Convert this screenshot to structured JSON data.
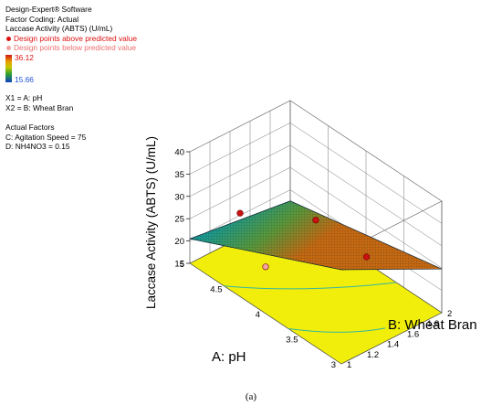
{
  "legend": {
    "software": "Design-Expert® Software",
    "coding": "Factor Coding: Actual",
    "response": "Laccase Activity (ABTS) (U/mL)",
    "above": "Design points above predicted value",
    "below": "Design points below predicted value",
    "max": "36.12",
    "min": "15.66",
    "x1": "X1 = A: pH",
    "x2": "X2 = B: Wheat Bran",
    "actual_title": "Actual Factors",
    "factor_c": "C: Agitation Speed = 75",
    "factor_d": "D: NH4NO3 = 0.15"
  },
  "caption": "(a)",
  "colors": {
    "above": "#cc1111",
    "below": "#f4a2a2",
    "floor": "#f0ee0a",
    "surface_low": "#1e5fae",
    "surface_high": "#c96a10"
  },
  "chart_data": {
    "type": "surface3d",
    "xlabel": "A: pH",
    "ylabel": "B: Wheat Bran",
    "zlabel": "Laccase Activity (ABTS) (U/mL)",
    "xlim": [
      3,
      5
    ],
    "ylim": [
      1,
      2
    ],
    "zlim": [
      15,
      40
    ],
    "x_ticks": [
      "3",
      "3.5",
      "4",
      "4.5",
      "5"
    ],
    "y_ticks": [
      "1",
      "1.2",
      "1.4",
      "1.6",
      "1.8",
      "2"
    ],
    "z_ticks": [
      "15",
      "20",
      "25",
      "30",
      "35",
      "40"
    ],
    "surface_corners": [
      {
        "x": 5,
        "y": 1,
        "z": 20.5
      },
      {
        "x": 5,
        "y": 2,
        "z": 17.5
      },
      {
        "x": 3,
        "y": 1,
        "z": 36.1
      },
      {
        "x": 3,
        "y": 2,
        "z": 24.8
      }
    ],
    "design_points": [
      {
        "x": 4,
        "y": 1.5,
        "z": 30.2,
        "position": "above"
      },
      {
        "x": 5,
        "y": 1.5,
        "z": 20.5,
        "position": "above"
      },
      {
        "x": 3,
        "y": 1.25,
        "z": 36.1,
        "position": "above"
      },
      {
        "x": 4,
        "y": 1,
        "z": 25.5,
        "position": "below"
      }
    ]
  }
}
